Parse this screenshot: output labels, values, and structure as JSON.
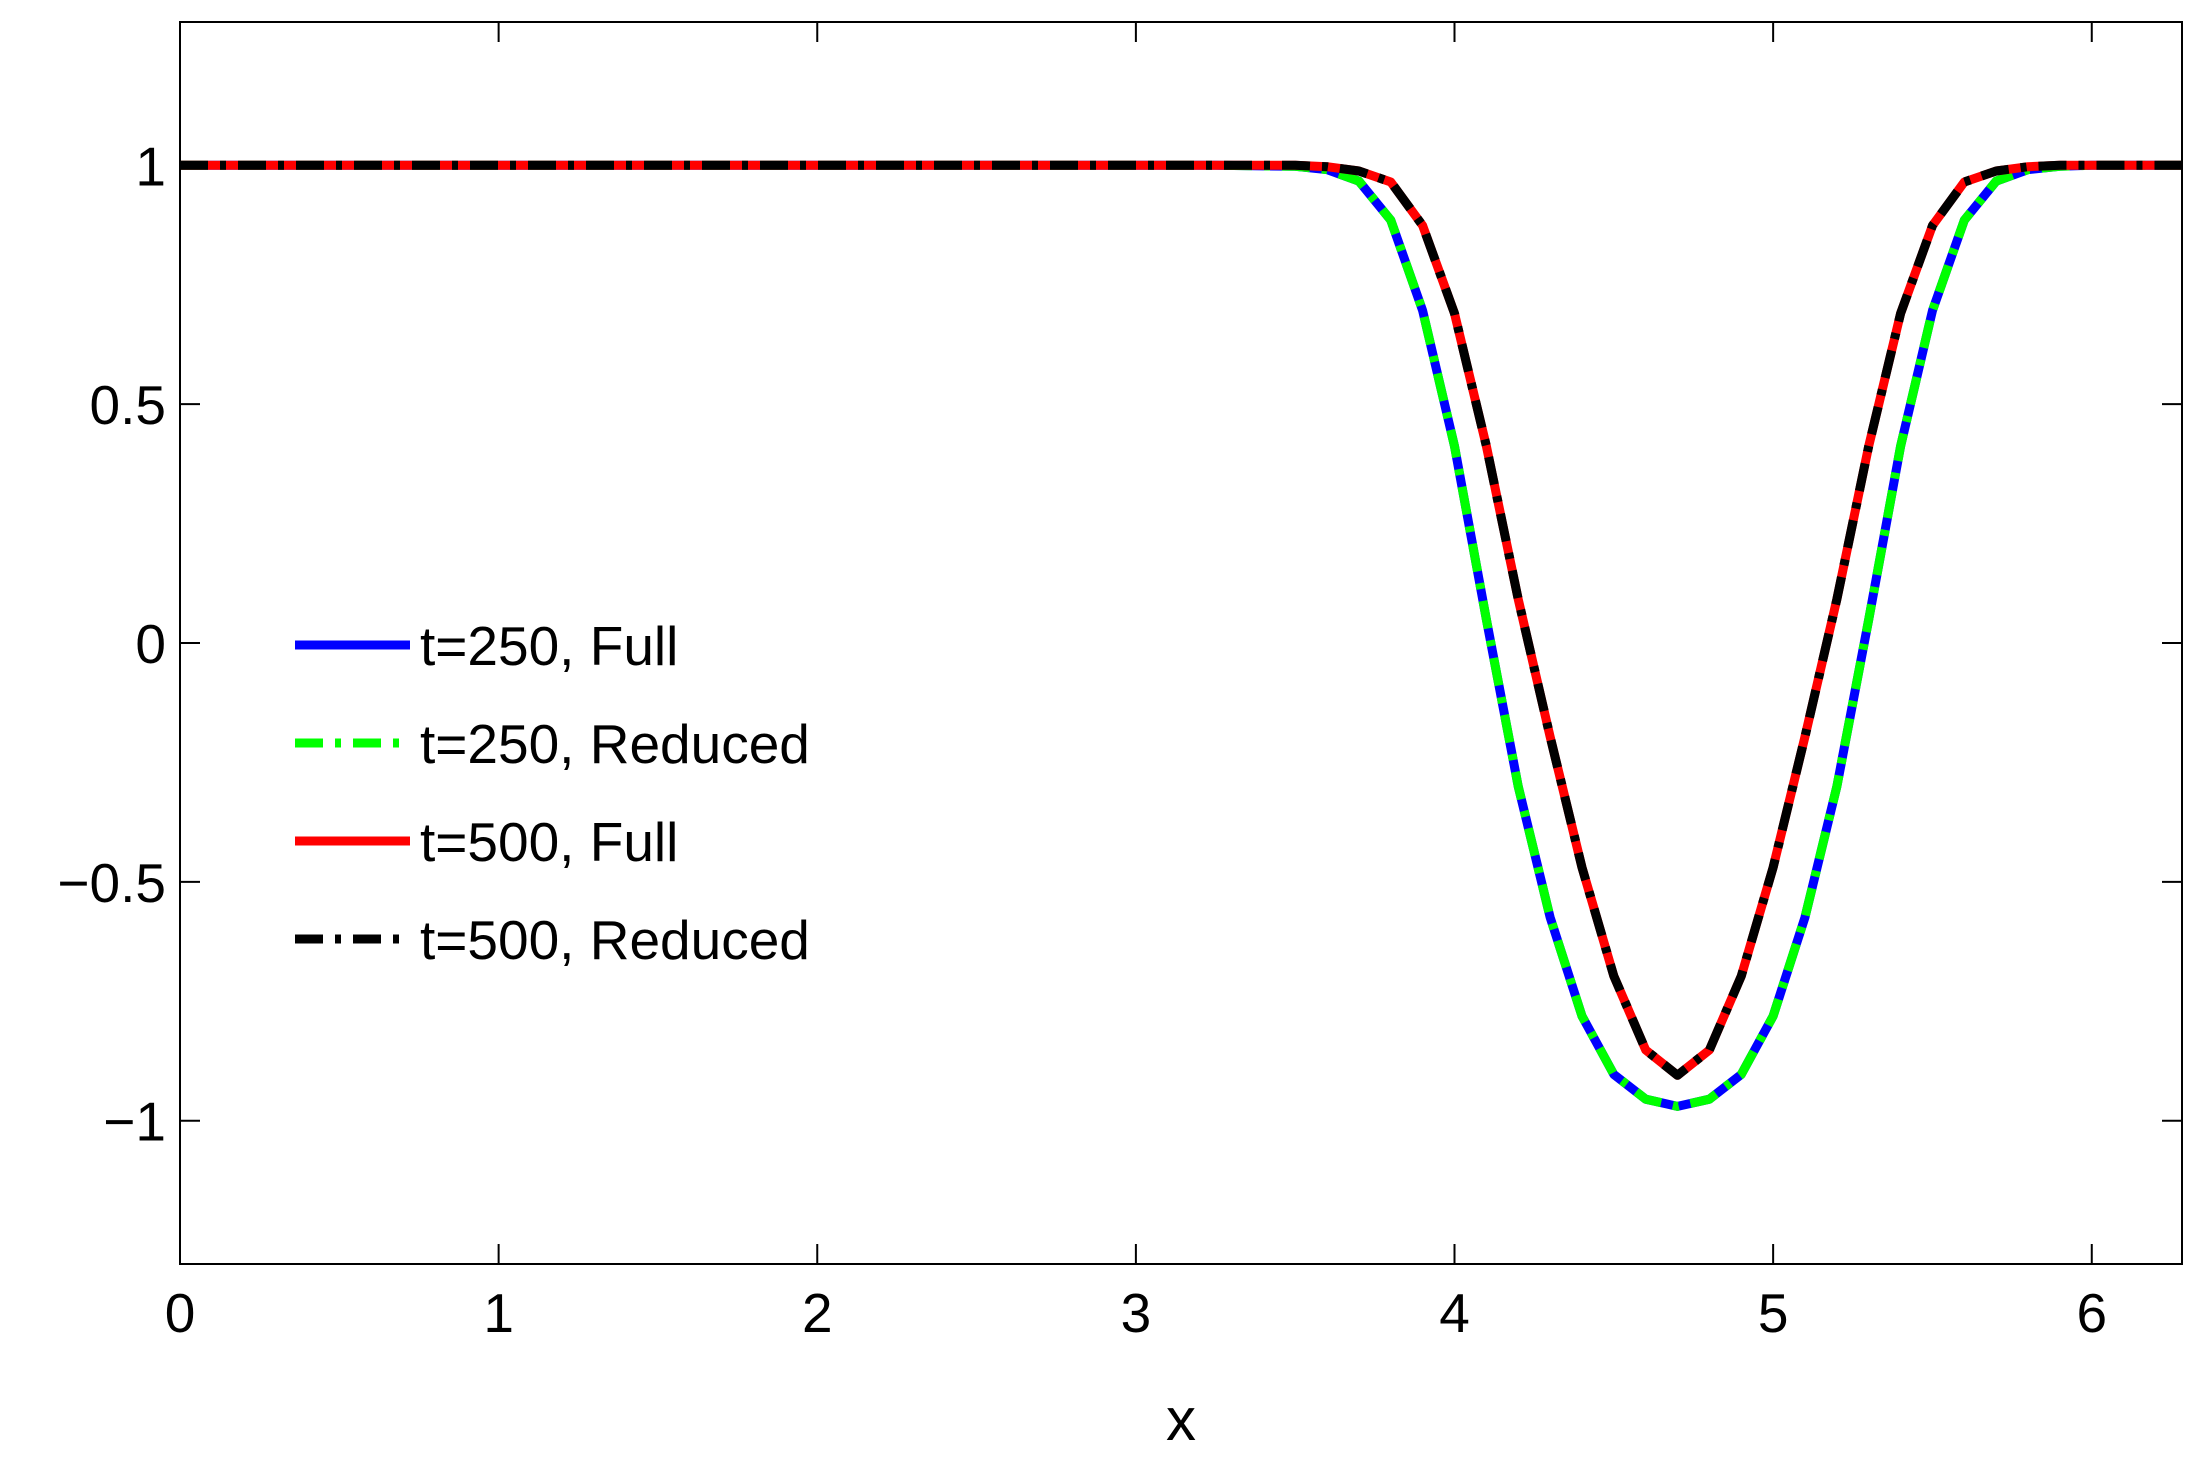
{
  "chart_data": {
    "type": "line",
    "title": "",
    "xlabel": "x",
    "ylabel": "",
    "xlim": [
      0,
      6.2832
    ],
    "ylim": [
      -1.3,
      1.3
    ],
    "xticks": [
      0,
      1,
      2,
      3,
      4,
      5,
      6
    ],
    "xtick_labels": [
      "0",
      "1",
      "2",
      "3",
      "4",
      "5",
      "6"
    ],
    "yticks": [
      1,
      0.5,
      0,
      -0.5,
      -1
    ],
    "ytick_labels": [
      "1",
      "0.5",
      "0",
      "−0.5",
      "−1"
    ],
    "grid": false,
    "legend_position": "middle-left",
    "x": [
      0,
      0.5,
      1,
      1.5,
      2,
      2.5,
      3,
      3.25,
      3.5,
      3.6,
      3.7,
      3.8,
      3.9,
      4,
      4.1,
      4.2,
      4.3,
      4.4,
      4.5,
      4.6,
      4.7,
      4.8,
      4.9,
      5,
      5.1,
      5.2,
      5.3,
      5.4,
      5.5,
      5.6,
      5.7,
      5.8,
      5.9,
      6,
      6.1,
      6.2832
    ],
    "series": [
      {
        "name": "t=250, Full",
        "color": "#0000ff",
        "dash": "solid",
        "values": [
          1,
          1,
          1,
          1,
          1,
          1,
          1,
          1,
          0.998,
          0.991,
          0.967,
          0.885,
          0.696,
          0.412,
          0.049,
          -0.3,
          -0.574,
          -0.781,
          -0.903,
          -0.955,
          -0.97,
          -0.955,
          -0.903,
          -0.781,
          -0.574,
          -0.3,
          0.049,
          0.412,
          0.696,
          0.885,
          0.967,
          0.991,
          0.998,
          1,
          1,
          1
        ]
      },
      {
        "name": "t=250, Reduced",
        "color": "#00ff00",
        "dash": "dashdot",
        "values": [
          1,
          1,
          1,
          1,
          1,
          1,
          1,
          1,
          0.998,
          0.991,
          0.967,
          0.885,
          0.696,
          0.412,
          0.049,
          -0.3,
          -0.574,
          -0.781,
          -0.903,
          -0.955,
          -0.97,
          -0.955,
          -0.903,
          -0.781,
          -0.574,
          -0.3,
          0.049,
          0.412,
          0.696,
          0.885,
          0.967,
          0.991,
          0.998,
          1,
          1,
          1
        ]
      },
      {
        "name": "t=500, Full",
        "color": "#ff0000",
        "dash": "solid",
        "values": [
          1,
          1,
          1,
          1,
          1,
          1,
          1,
          1,
          1,
          0.997,
          0.988,
          0.965,
          0.874,
          0.69,
          0.412,
          0.092,
          -0.196,
          -0.47,
          -0.697,
          -0.852,
          -0.905,
          -0.852,
          -0.697,
          -0.47,
          -0.196,
          0.092,
          0.412,
          0.69,
          0.874,
          0.965,
          0.988,
          0.997,
          1,
          1,
          1,
          1
        ]
      },
      {
        "name": "t=500, Reduced",
        "color": "#000000",
        "dash": "dashdot",
        "values": [
          1,
          1,
          1,
          1,
          1,
          1,
          1,
          1,
          1,
          0.997,
          0.988,
          0.965,
          0.874,
          0.69,
          0.412,
          0.092,
          -0.196,
          -0.47,
          -0.697,
          -0.852,
          -0.905,
          -0.852,
          -0.697,
          -0.47,
          -0.196,
          0.092,
          0.412,
          0.69,
          0.874,
          0.965,
          0.988,
          0.997,
          1,
          1,
          1,
          1
        ]
      }
    ]
  }
}
